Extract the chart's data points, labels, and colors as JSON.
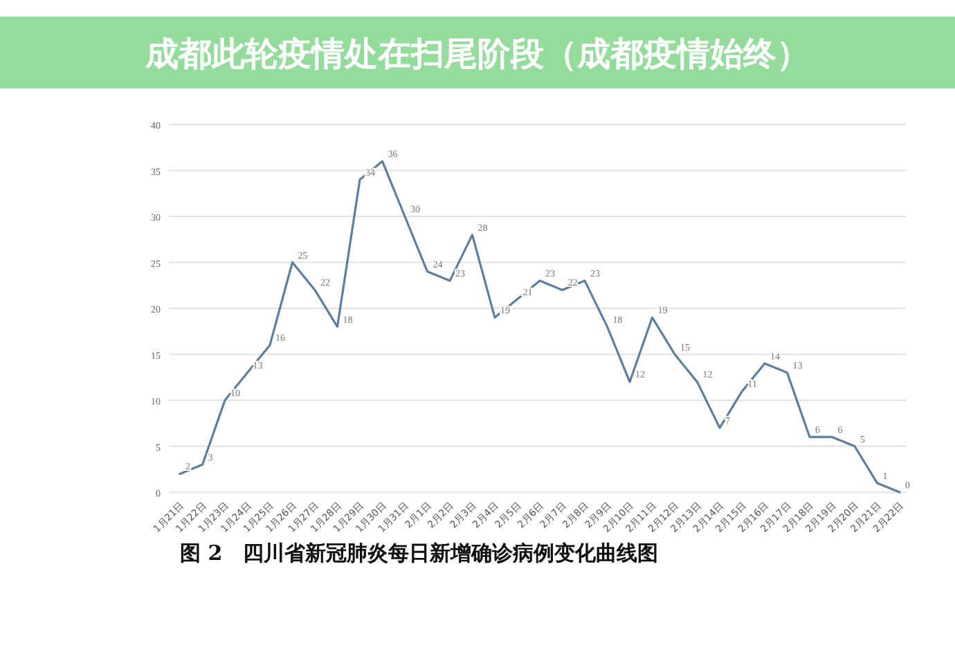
{
  "chart_data": {
    "type": "line",
    "title": "成都此轮疫情处在扫尾阶段（成都疫情始终）",
    "annotations": [
      "图 2　四川省新冠肺炎每日新增确诊病例变化曲线图"
    ],
    "categories": [
      "1月21日",
      "1月22日",
      "1月23日",
      "1月24日",
      "1月25日",
      "1月26日",
      "1月27日",
      "1月28日",
      "1月29日",
      "1月30日",
      "1月31日",
      "2月1日",
      "2月2日",
      "2月3日",
      "2月4日",
      "2月5日",
      "2月6日",
      "2月7日",
      "2月8日",
      "2月9日",
      "2月10日",
      "2月11日",
      "2月12日",
      "2月13日",
      "2月14日",
      "2月15日",
      "2月16日",
      "2月17日",
      "2月18日",
      "2月19日",
      "2月20日",
      "2月21日",
      "2月22日"
    ],
    "series": [
      {
        "color": "#5d7f9e",
        "values": [
          2,
          3,
          10,
          13,
          16,
          25,
          22,
          18,
          34,
          36,
          30,
          24,
          23,
          28,
          19,
          21,
          23,
          22,
          23,
          18,
          12,
          19,
          15,
          12,
          7,
          11,
          14,
          13,
          6,
          6,
          5,
          1,
          0
        ]
      }
    ],
    "ylim": [
      0,
      40
    ],
    "yticks": [
      0,
      5,
      10,
      15,
      20,
      25,
      30,
      35,
      40
    ],
    "grid": "y",
    "data_labels": true
  }
}
